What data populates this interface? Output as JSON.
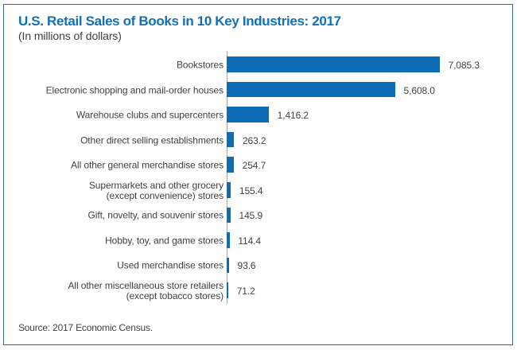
{
  "header": {
    "title": "U.S. Retail Sales of Books in 10 Key Industries: 2017",
    "subtitle": "(In millions of dollars)"
  },
  "source_note": "Source: 2017 Economic Census.",
  "colors": {
    "bar": "#0d6cb6",
    "title": "#1070b8",
    "text": "#414042",
    "frame_border": "#36618e",
    "axis_line": "#a8a8a8"
  },
  "chart_data": {
    "type": "bar",
    "orientation": "horizontal",
    "title": "U.S. Retail Sales of Books in 10 Key Industries: 2017",
    "subtitle": "(In millions of dollars)",
    "unit": "millions of dollars",
    "xlim": [
      0,
      7085.3
    ],
    "grid": false,
    "legend": false,
    "categories": [
      "Bookstores",
      "Electronic shopping and mail-order houses",
      "Warehouse clubs and supercenters",
      "Other direct selling establishments",
      "All other general merchandise stores",
      "Supermarkets and other grocery (except convenience) stores",
      "Gift, novelty, and souvenir stores",
      "Hobby, toy, and game stores",
      "Used merchandise stores",
      "All other miscellaneous store retailers (except tobacco stores)"
    ],
    "category_display_lines": [
      [
        "Bookstores"
      ],
      [
        "Electronic shopping and mail-order houses"
      ],
      [
        "Warehouse clubs and supercenters"
      ],
      [
        "Other direct selling establishments"
      ],
      [
        "All other general merchandise stores"
      ],
      [
        "Supermarkets and other grocery",
        "(except convenience) stores"
      ],
      [
        "Gift, novelty, and souvenir stores"
      ],
      [
        "Hobby, toy, and game stores"
      ],
      [
        "Used merchandise stores"
      ],
      [
        "All other miscellaneous store retailers",
        "(except tobacco stores)"
      ]
    ],
    "values": [
      7085.3,
      5608.0,
      1416.2,
      263.2,
      254.7,
      155.4,
      145.9,
      114.4,
      93.6,
      71.2
    ],
    "value_labels": [
      "7,085.3",
      "5,608.0",
      "1,416.2",
      "263.2",
      "254.7",
      "155.4",
      "145.9",
      "114.4",
      "93.6",
      "71.2"
    ],
    "source": "Source: 2017 Economic Census."
  }
}
